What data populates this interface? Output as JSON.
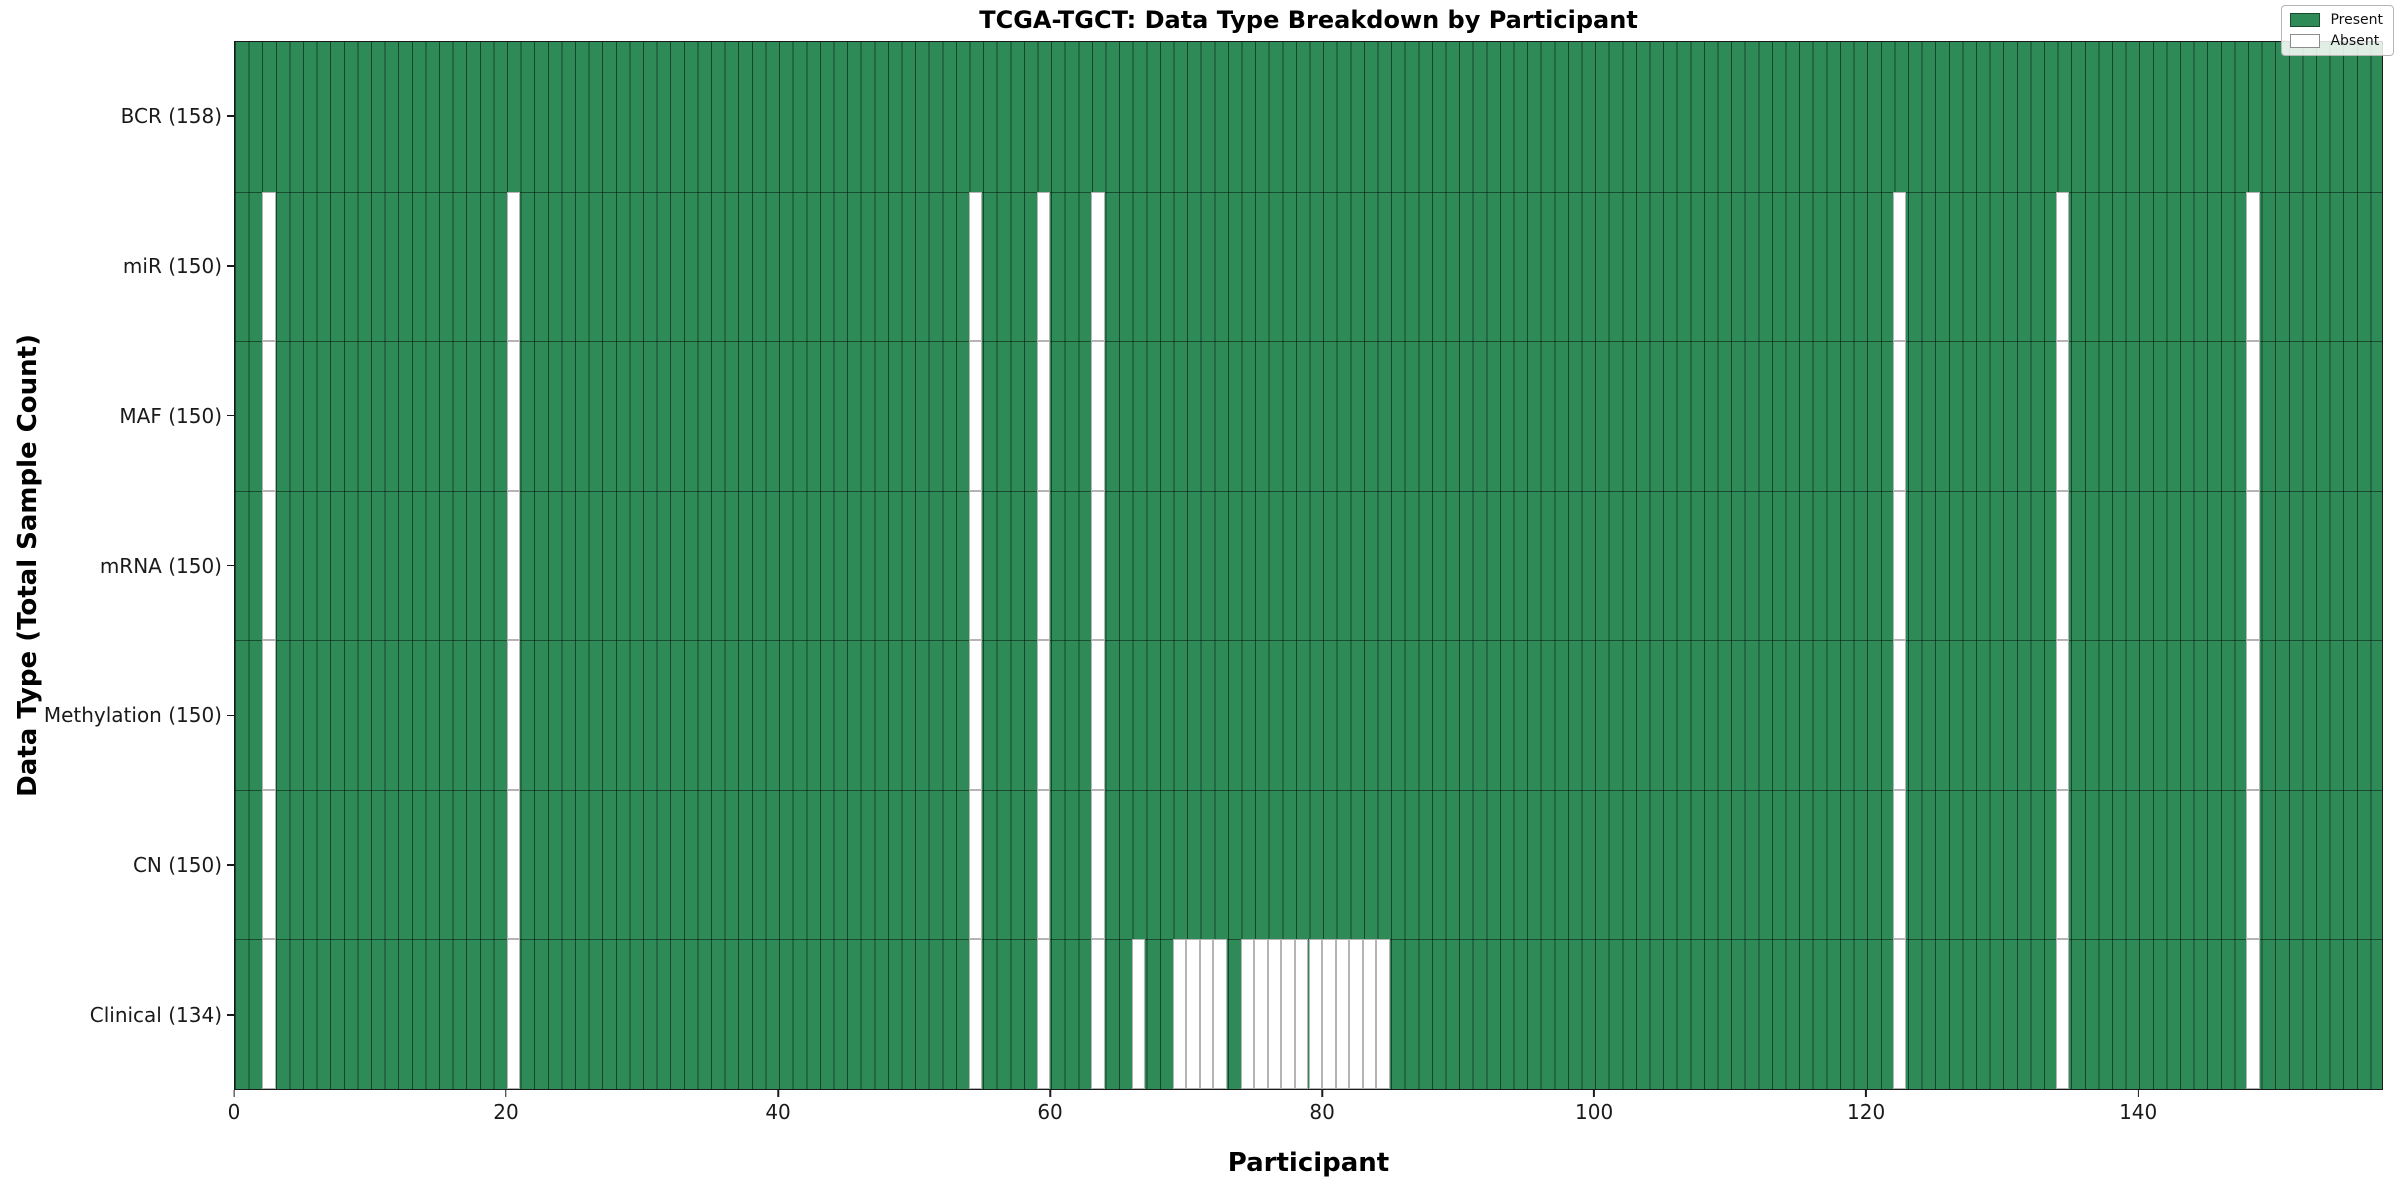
{
  "chart_data": {
    "type": "heatmap",
    "title": "TCGA-TGCT: Data Type Breakdown by Participant",
    "xlabel": "Participant",
    "ylabel": "Data Type (Total Sample Count)",
    "n_participants": 158,
    "x_ticks": [
      0,
      20,
      40,
      60,
      80,
      100,
      120,
      140
    ],
    "present_color": "#2e8b57",
    "absent_color": "#ffffff",
    "grid_line_color": "rgba(0,0,0,0.5)",
    "legend": [
      {
        "label": "Present",
        "color": "#2e8b57"
      },
      {
        "label": "Absent",
        "color": "#ffffff"
      }
    ],
    "rows": [
      {
        "label": "BCR (158)",
        "count": 158,
        "absent": []
      },
      {
        "label": "miR (150)",
        "count": 150,
        "absent": [
          2,
          20,
          54,
          59,
          63,
          122,
          134,
          148
        ]
      },
      {
        "label": "MAF (150)",
        "count": 150,
        "absent": [
          2,
          20,
          54,
          59,
          63,
          122,
          134,
          148
        ]
      },
      {
        "label": "mRNA (150)",
        "count": 150,
        "absent": [
          2,
          20,
          54,
          59,
          63,
          122,
          134,
          148
        ]
      },
      {
        "label": "Methylation (150)",
        "count": 150,
        "absent": [
          2,
          20,
          54,
          59,
          63,
          122,
          134,
          148
        ]
      },
      {
        "label": "CN (150)",
        "count": 150,
        "absent": [
          2,
          20,
          54,
          59,
          63,
          122,
          134,
          148
        ]
      },
      {
        "label": "Clinical (134)",
        "count": 134,
        "absent": [
          2,
          20,
          54,
          59,
          63,
          66,
          69,
          70,
          71,
          72,
          74,
          75,
          76,
          77,
          78,
          79,
          80,
          81,
          82,
          83,
          84,
          122,
          134,
          148
        ]
      }
    ]
  }
}
